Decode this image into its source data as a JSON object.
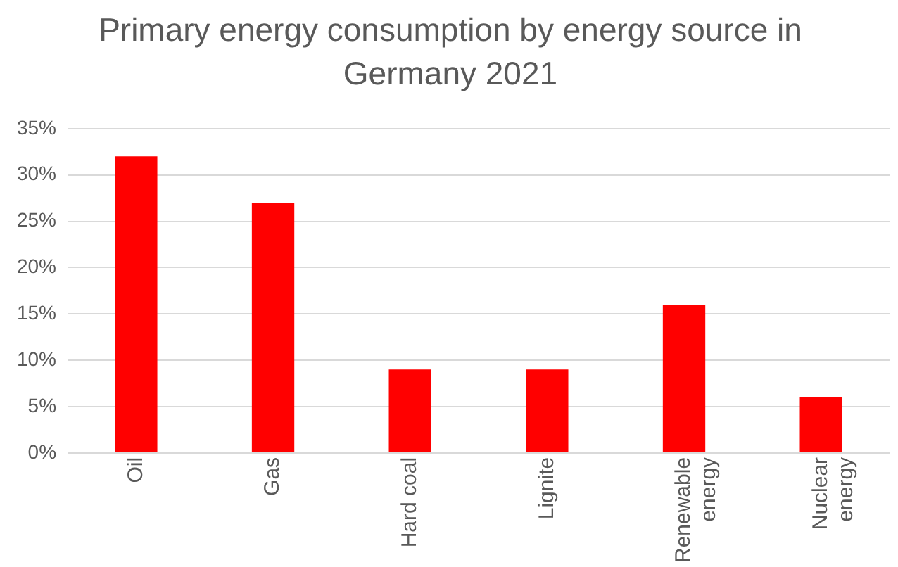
{
  "chart_data": {
    "type": "bar",
    "title": "Primary energy consumption by energy source in Germany 2021",
    "categories": [
      "Oil",
      "Gas",
      "Hard coal",
      "Lignite",
      "Renewable energy",
      "Nuclear energy"
    ],
    "values": [
      32,
      27,
      9,
      9,
      16,
      6
    ],
    "color": "#ff0000",
    "ylim": [
      0,
      35
    ],
    "yticks": [
      {
        "value": 0,
        "label": "0%"
      },
      {
        "value": 5,
        "label": "5%"
      },
      {
        "value": 10,
        "label": "10%"
      },
      {
        "value": 15,
        "label": "15%"
      },
      {
        "value": 20,
        "label": "20%"
      },
      {
        "value": 25,
        "label": "25%"
      },
      {
        "value": 30,
        "label": "30%"
      },
      {
        "value": 35,
        "label": "35%"
      }
    ],
    "grid": "y",
    "legend": false
  }
}
